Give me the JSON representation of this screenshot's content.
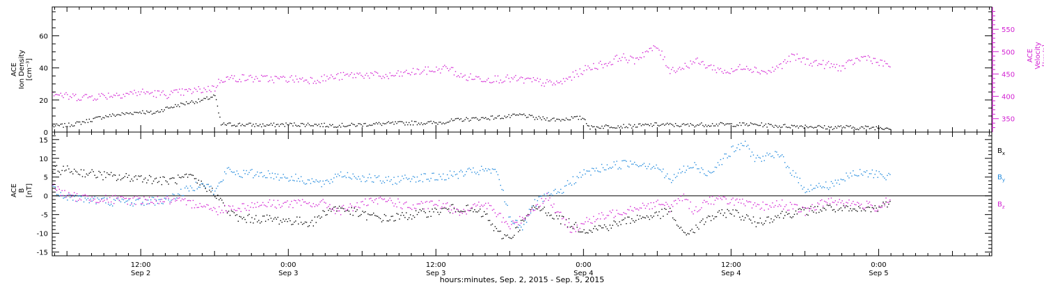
{
  "figure": {
    "xlabel": "hours:minutes, Sep. 2, 2015 - Sep. 5, 2015",
    "time_ticks": [
      {
        "t": 12,
        "line1": "12:00",
        "line2": "Sep 2"
      },
      {
        "t": 24,
        "line1": "0:00",
        "line2": "Sep 3"
      },
      {
        "t": 36,
        "line1": "12:00",
        "line2": "Sep 3"
      },
      {
        "t": 48,
        "line1": "0:00",
        "line2": "Sep 4"
      },
      {
        "t": 60,
        "line1": "12:00",
        "line2": "Sep 4"
      },
      {
        "t": 72,
        "line1": "0:00",
        "line2": "Sep 5"
      }
    ],
    "colors": {
      "black": "#000000",
      "magenta": "#d21ed2",
      "blue": "#1e88dc"
    }
  },
  "chart_data": [
    {
      "type": "scatter",
      "x_unit": "hours since 00:00 Sep 2, 2015",
      "xlim": [
        4.8,
        81.2
      ],
      "ylabel_left": [
        "ACE",
        "Ion Density",
        "[cm⁻³]"
      ],
      "ylim_left": [
        0,
        78
      ],
      "yticks_left": [
        0,
        20,
        40,
        60
      ],
      "ylabel_right": [
        "ACE",
        "Velocity",
        "[km/s]"
      ],
      "ylim_right": [
        320,
        600
      ],
      "yticks_right": [
        350,
        400,
        450,
        500,
        550
      ],
      "grid": false,
      "series": [
        {
          "axis": "left",
          "color": "#000000",
          "points": [
            [
              4.8,
              4
            ],
            [
              6,
              4.5
            ],
            [
              7,
              6
            ],
            [
              8,
              8
            ],
            [
              9,
              10
            ],
            [
              10,
              11
            ],
            [
              11,
              12
            ],
            [
              12,
              13
            ],
            [
              13,
              12
            ],
            [
              14,
              15
            ],
            [
              15,
              17
            ],
            [
              16,
              19
            ],
            [
              17,
              20
            ],
            [
              18,
              23
            ],
            [
              18.5,
              5
            ],
            [
              20,
              5
            ],
            [
              22,
              4.5
            ],
            [
              24,
              5
            ],
            [
              26,
              5
            ],
            [
              27,
              4.5
            ],
            [
              28,
              4.5
            ],
            [
              29,
              4.5
            ],
            [
              30,
              5
            ],
            [
              32,
              5.5
            ],
            [
              34,
              6
            ],
            [
              36,
              6
            ],
            [
              37,
              7
            ],
            [
              38,
              8
            ],
            [
              40,
              9
            ],
            [
              42,
              10
            ],
            [
              43,
              11
            ],
            [
              44,
              9
            ],
            [
              46,
              8
            ],
            [
              47,
              9
            ],
            [
              48,
              9
            ],
            [
              48.5,
              3
            ],
            [
              50,
              4
            ],
            [
              52,
              4
            ],
            [
              54,
              5
            ],
            [
              56,
              4.5
            ],
            [
              58,
              5
            ],
            [
              60,
              5
            ],
            [
              62,
              5
            ],
            [
              64,
              4
            ],
            [
              66,
              4
            ],
            [
              68,
              3
            ],
            [
              69,
              3.5
            ],
            [
              70,
              3
            ],
            [
              71,
              3
            ],
            [
              72,
              3
            ],
            [
              72.5,
              3
            ],
            [
              73,
              3
            ]
          ]
        },
        {
          "axis": "right",
          "color": "#d21ed2",
          "points": [
            [
              4.8,
              410
            ],
            [
              6,
              400
            ],
            [
              8,
              400
            ],
            [
              10,
              405
            ],
            [
              12,
              410
            ],
            [
              14,
              405
            ],
            [
              16,
              412
            ],
            [
              18,
              420
            ],
            [
              18.5,
              440
            ],
            [
              20,
              442
            ],
            [
              22,
              440
            ],
            [
              24,
              440
            ],
            [
              26,
              438
            ],
            [
              28,
              445
            ],
            [
              30,
              450
            ],
            [
              32,
              445
            ],
            [
              34,
              455
            ],
            [
              36,
              460
            ],
            [
              37,
              465
            ],
            [
              38,
              445
            ],
            [
              40,
              440
            ],
            [
              42,
              440
            ],
            [
              44,
              435
            ],
            [
              45,
              430
            ],
            [
              46,
              430
            ],
            [
              47,
              445
            ],
            [
              48,
              460
            ],
            [
              49,
              470
            ],
            [
              50,
              475
            ],
            [
              51,
              490
            ],
            [
              52,
              480
            ],
            [
              53,
              500
            ],
            [
              54,
              510
            ],
            [
              55,
              460
            ],
            [
              56,
              465
            ],
            [
              57,
              480
            ],
            [
              58,
              470
            ],
            [
              59,
              460
            ],
            [
              60,
              455
            ],
            [
              61,
              470
            ],
            [
              62,
              460
            ],
            [
              63,
              455
            ],
            [
              64,
              470
            ],
            [
              65,
              490
            ],
            [
              66,
              480
            ],
            [
              67,
              475
            ],
            [
              68,
              470
            ],
            [
              69,
              465
            ],
            [
              70,
              480
            ],
            [
              71,
              490
            ],
            [
              72,
              475
            ],
            [
              73,
              470
            ]
          ]
        }
      ]
    },
    {
      "type": "scatter",
      "x_unit": "hours since 00:00 Sep 2, 2015",
      "xlim": [
        4.8,
        81.2
      ],
      "ylabel": [
        "ACE",
        "B",
        "[nT]"
      ],
      "ylim": [
        -16,
        17
      ],
      "yticks": [
        -15,
        -10,
        -5,
        0,
        5,
        10,
        15
      ],
      "zero_line": true,
      "grid": false,
      "series": [
        {
          "name": "Bx",
          "color": "#000000",
          "points": [
            [
              4.8,
              7
            ],
            [
              6,
              7
            ],
            [
              8,
              6
            ],
            [
              10,
              5
            ],
            [
              12,
              5
            ],
            [
              14,
              4
            ],
            [
              16,
              5
            ],
            [
              17,
              3
            ],
            [
              18,
              1
            ],
            [
              19,
              -4
            ],
            [
              20,
              -6
            ],
            [
              22,
              -6
            ],
            [
              24,
              -6.5
            ],
            [
              26,
              -7
            ],
            [
              27,
              -4
            ],
            [
              28,
              -3
            ],
            [
              29,
              -4
            ],
            [
              30,
              -5
            ],
            [
              32,
              -6
            ],
            [
              34,
              -5
            ],
            [
              36,
              -4
            ],
            [
              38,
              -3
            ],
            [
              40,
              -5
            ],
            [
              41,
              -10
            ],
            [
              42,
              -11
            ],
            [
              43,
              -7
            ],
            [
              44,
              -3
            ],
            [
              45,
              -4
            ],
            [
              46,
              -6
            ],
            [
              48,
              -9
            ],
            [
              50,
              -8
            ],
            [
              52,
              -6
            ],
            [
              54,
              -5
            ],
            [
              55,
              -4
            ],
            [
              56,
              -10
            ],
            [
              57,
              -9
            ],
            [
              58,
              -6
            ],
            [
              60,
              -4
            ],
            [
              62,
              -7
            ],
            [
              64,
              -5
            ],
            [
              66,
              -4
            ],
            [
              68,
              -3
            ],
            [
              70,
              -4
            ],
            [
              72,
              -3
            ],
            [
              73,
              -1
            ]
          ]
        },
        {
          "name": "By",
          "color": "#1e88dc",
          "points": [
            [
              4.8,
              2
            ],
            [
              6,
              0
            ],
            [
              8,
              -1
            ],
            [
              10,
              -1.5
            ],
            [
              12,
              -1.5
            ],
            [
              14,
              -1
            ],
            [
              16,
              2
            ],
            [
              17,
              4
            ],
            [
              18,
              1
            ],
            [
              19,
              7
            ],
            [
              20,
              6
            ],
            [
              22,
              6
            ],
            [
              24,
              5
            ],
            [
              26,
              4
            ],
            [
              27,
              3
            ],
            [
              28,
              6
            ],
            [
              30,
              5
            ],
            [
              32,
              4
            ],
            [
              34,
              5
            ],
            [
              36,
              5
            ],
            [
              38,
              6
            ],
            [
              40,
              7
            ],
            [
              41,
              6
            ],
            [
              42,
              -6
            ],
            [
              43,
              -8
            ],
            [
              44,
              -2
            ],
            [
              45,
              0
            ],
            [
              46,
              1
            ],
            [
              47,
              4
            ],
            [
              48,
              6
            ],
            [
              50,
              8
            ],
            [
              52,
              9
            ],
            [
              54,
              8
            ],
            [
              55,
              4
            ],
            [
              56,
              7
            ],
            [
              57,
              8
            ],
            [
              58,
              6
            ],
            [
              60,
              12
            ],
            [
              61,
              14
            ],
            [
              62,
              10
            ],
            [
              64,
              11
            ],
            [
              65,
              6
            ],
            [
              66,
              2
            ],
            [
              68,
              3
            ],
            [
              70,
              6
            ],
            [
              72,
              6
            ],
            [
              73,
              5
            ]
          ]
        },
        {
          "name": "Bz",
          "color": "#d21ed2",
          "points": [
            [
              4.8,
              3
            ],
            [
              6,
              0
            ],
            [
              8,
              -0.5
            ],
            [
              10,
              -1
            ],
            [
              12,
              -1
            ],
            [
              14,
              -1
            ],
            [
              16,
              -2
            ],
            [
              17,
              -2
            ],
            [
              18,
              -4
            ],
            [
              19,
              -3
            ],
            [
              20,
              -3
            ],
            [
              22,
              -2
            ],
            [
              24,
              -2
            ],
            [
              26,
              -2
            ],
            [
              27,
              -2
            ],
            [
              28,
              -4
            ],
            [
              30,
              -2
            ],
            [
              32,
              -1
            ],
            [
              34,
              -3
            ],
            [
              36,
              -2
            ],
            [
              38,
              -4
            ],
            [
              40,
              -2
            ],
            [
              41,
              -5
            ],
            [
              42,
              -8
            ],
            [
              43,
              -6
            ],
            [
              44,
              -3
            ],
            [
              45,
              0
            ],
            [
              46,
              -5
            ],
            [
              47,
              -9
            ],
            [
              48,
              -7
            ],
            [
              50,
              -5
            ],
            [
              52,
              -3
            ],
            [
              54,
              -2
            ],
            [
              55,
              -3
            ],
            [
              56,
              0
            ],
            [
              57,
              -4
            ],
            [
              58,
              -1
            ],
            [
              60,
              -1
            ],
            [
              62,
              -3
            ],
            [
              64,
              -2
            ],
            [
              66,
              -4
            ],
            [
              68,
              -1
            ],
            [
              70,
              -2
            ],
            [
              72,
              -3
            ],
            [
              73,
              0
            ]
          ]
        }
      ],
      "legend_labels": [
        "B",
        "B",
        "B"
      ],
      "legend_subscripts": [
        "x",
        "y",
        "z"
      ],
      "legend_placement": "right"
    }
  ]
}
